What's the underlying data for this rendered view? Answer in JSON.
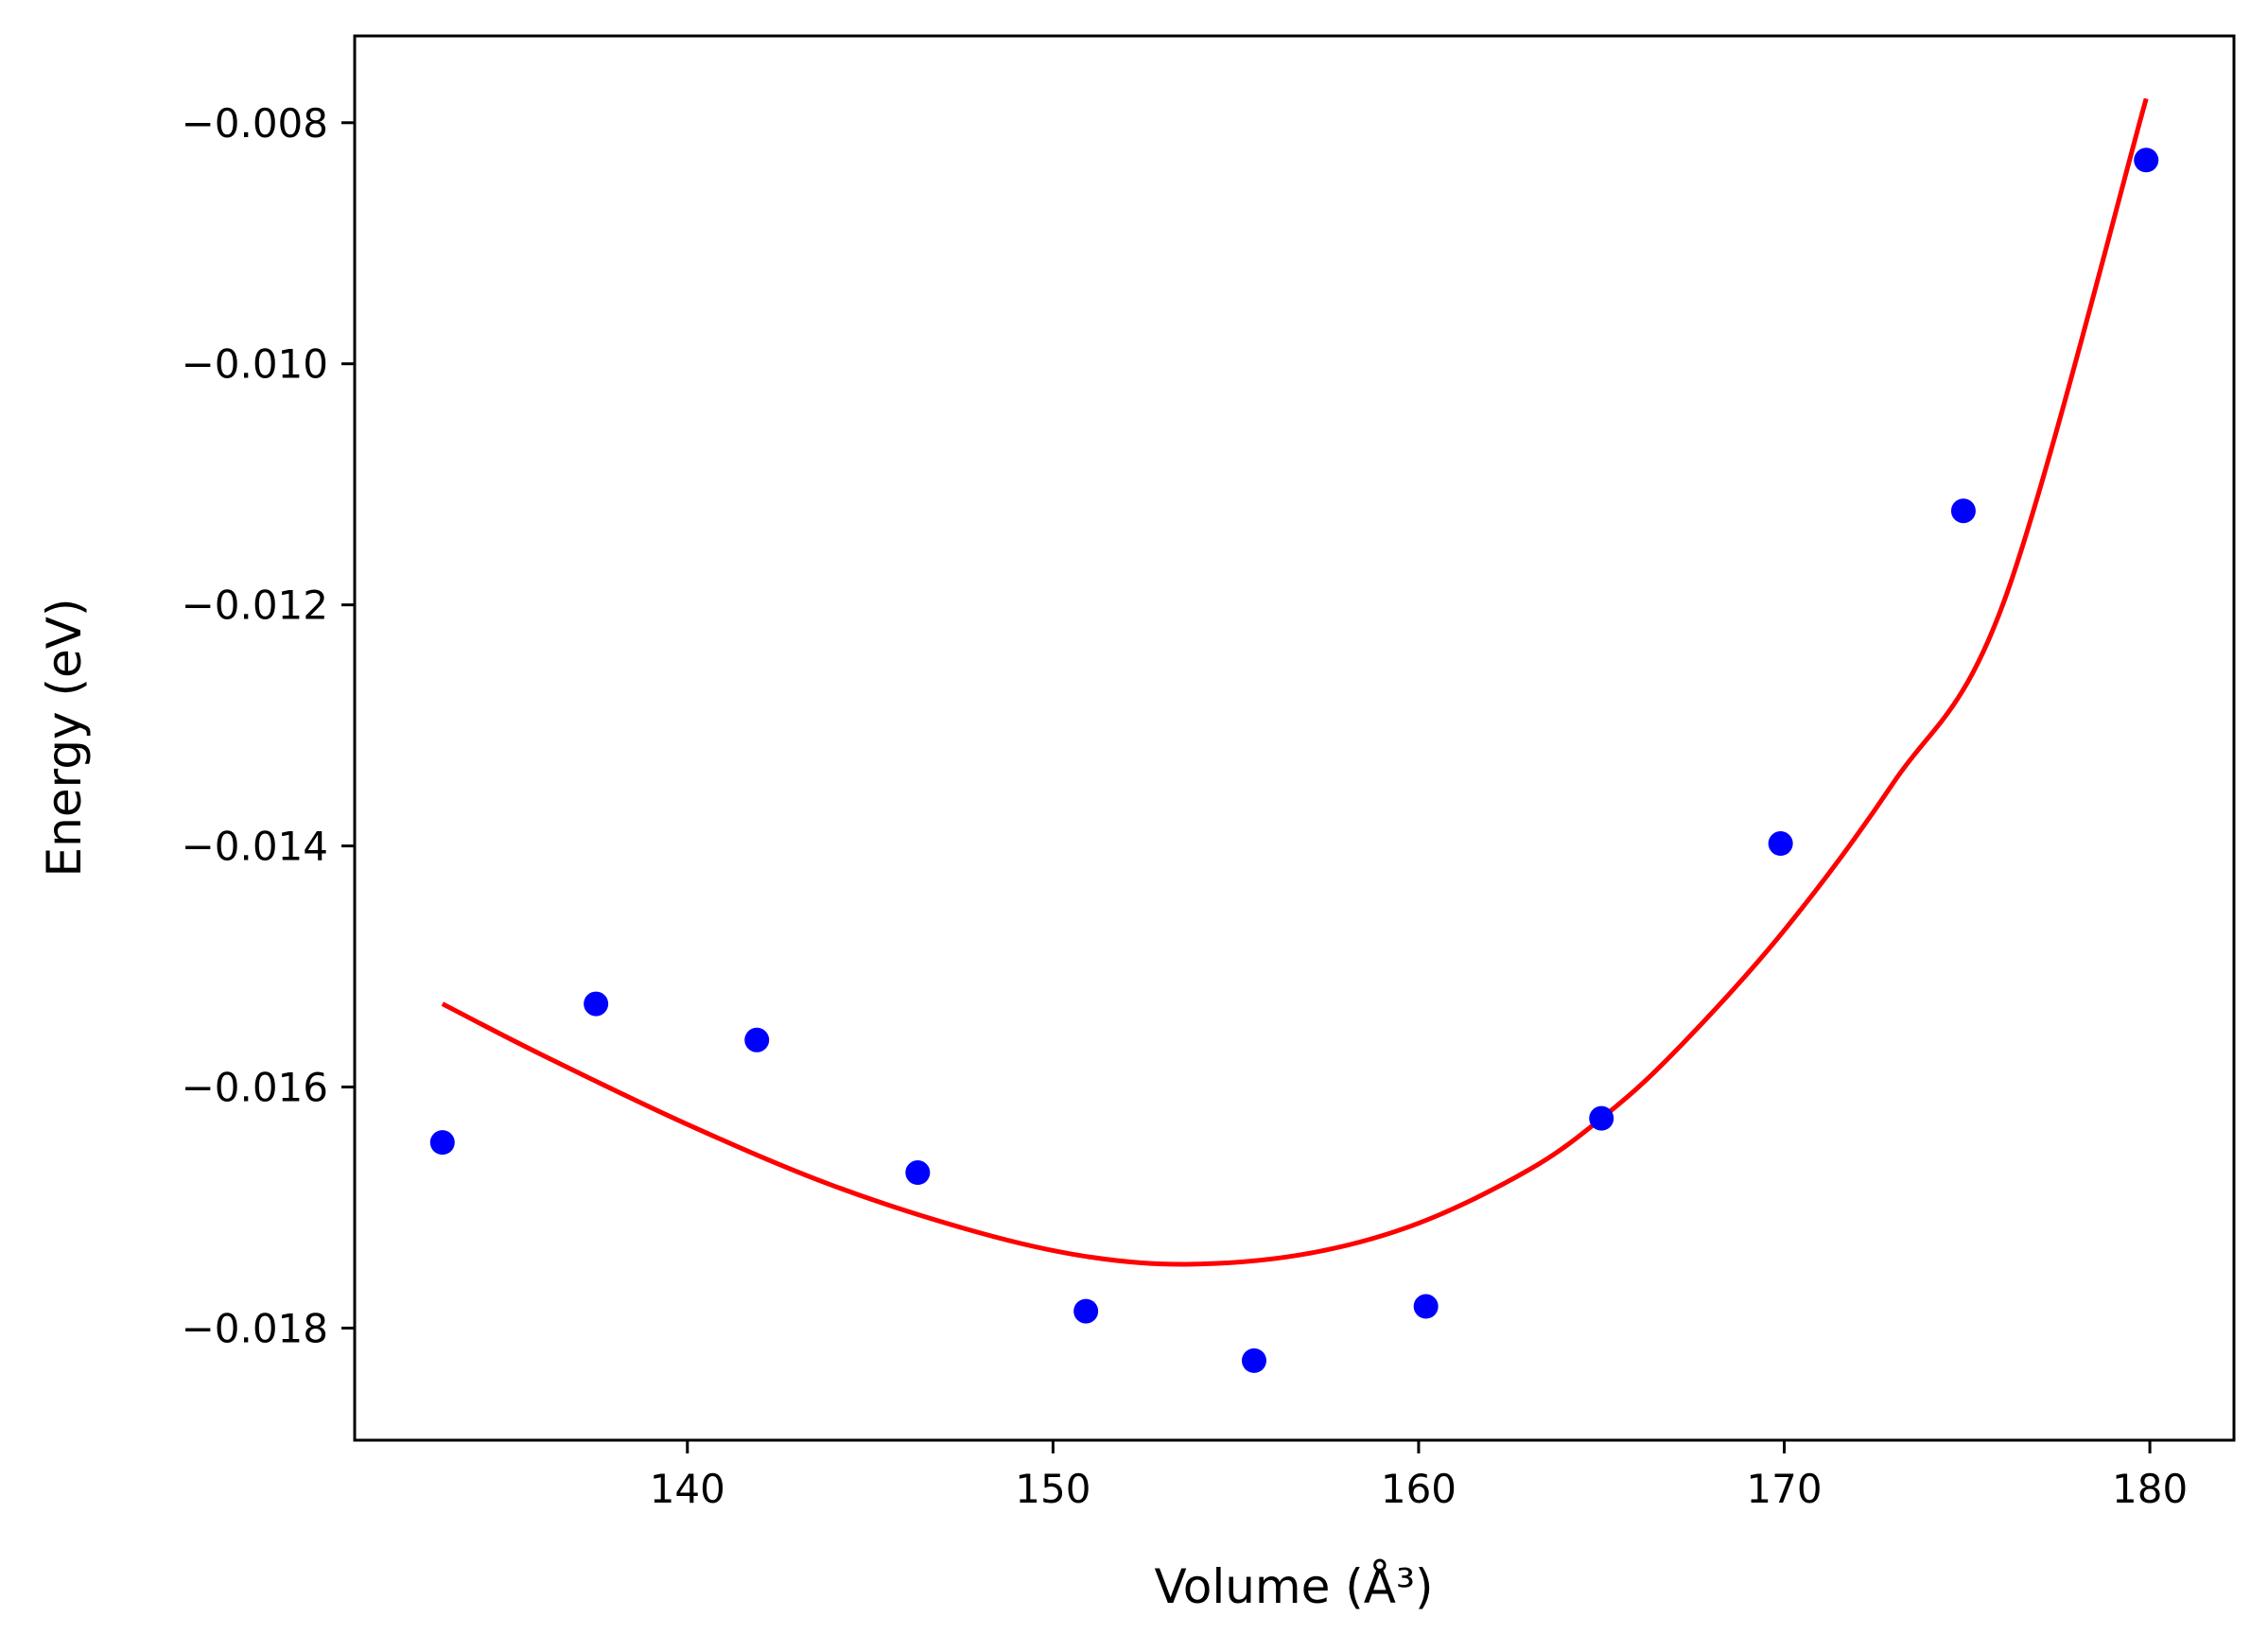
{
  "chart_data": {
    "type": "scatter",
    "xlabel": "Volume (Å³)",
    "ylabel": "Energy (eV)",
    "xlim": [
      130.9,
      182.3
    ],
    "ylim": [
      -0.01893,
      -0.00728
    ],
    "xticks": [
      140,
      150,
      160,
      170,
      180
    ],
    "xtick_labels": [
      "140",
      "150",
      "160",
      "170",
      "180"
    ],
    "yticks": [
      -0.008,
      -0.01,
      -0.012,
      -0.014,
      -0.016,
      -0.018
    ],
    "ytick_labels": [
      "−0.008",
      "−0.010",
      "−0.012",
      "−0.014",
      "−0.016",
      "−0.018"
    ],
    "grid": false,
    "series": [
      {
        "kind": "points",
        "color": "#0000ff",
        "x": [
          133.3,
          137.5,
          141.9,
          146.3,
          150.9,
          155.5,
          160.2,
          165.0,
          169.9,
          174.9,
          179.9
        ],
        "y": [
          -0.01646,
          -0.01531,
          -0.01561,
          -0.01671,
          -0.01786,
          -0.01827,
          -0.01782,
          -0.01626,
          -0.01398,
          -0.01122,
          -0.00831
        ]
      },
      {
        "kind": "fit-curve",
        "color": "#ff0000",
        "x": [
          133.3,
          136.0,
          140.0,
          144.0,
          148.0,
          151.0,
          153.8,
          157.0,
          160.0,
          163.0,
          165.0,
          167.0,
          170.0,
          173.0,
          176.0,
          179.9
        ],
        "y": [
          -0.01531,
          -0.01573,
          -0.01631,
          -0.01682,
          -0.01721,
          -0.01741,
          -0.01747,
          -0.01738,
          -0.01713,
          -0.01669,
          -0.01626,
          -0.01571,
          -0.0147,
          -0.01347,
          -0.01198,
          -0.0078
        ]
      }
    ]
  }
}
